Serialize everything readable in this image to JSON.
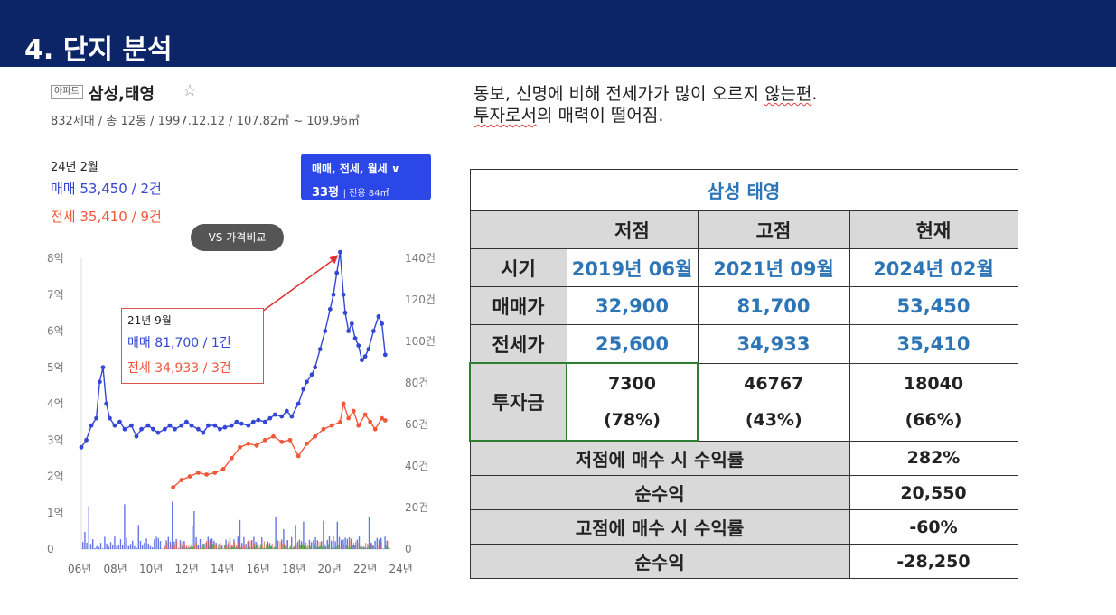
{
  "slide": {
    "title": "4. 단지 분석"
  },
  "apartment": {
    "tag": "아파트",
    "name": "삼성,태영",
    "star": "☆",
    "meta": "832세대 / 총 12동 / 1997.12.12 / 107.82㎡ ~ 109.96㎡"
  },
  "summary": {
    "period": "24년 2월",
    "trade": "매매 53,450 / 2건",
    "jeonse": "전세 35,410 / 9건"
  },
  "filter_button": {
    "line1": "매매, 전세, 월세",
    "chevron": "∨",
    "size": "33평",
    "area": "전용 84㎡"
  },
  "compare_button": {
    "label": "VS 가격비교"
  },
  "callout": {
    "date": "21년 9월",
    "trade": "매매 81,700 / 1건",
    "jeonse": "전세 34,933 / 3건"
  },
  "comment": {
    "line1_a": "동보, 신명에 비해 전세가가 많이 오르지 ",
    "line1_b": "않는편",
    "line1_c": ".",
    "line2_a": "투자로서",
    "line2_b": "의 매력이 떨어짐."
  },
  "colors": {
    "trade": "#3346d4",
    "jeonse": "#f0583a",
    "volume_jeonse": "#e86050",
    "volume_wolse": "#40b040",
    "header_bar": "#0b2566"
  },
  "chart_data": {
    "type": "line",
    "x_tick_labels": [
      "06년",
      "08년",
      "10년",
      "12년",
      "14년",
      "16년",
      "18년",
      "20년",
      "22년",
      "24년"
    ],
    "y_left_tick_labels": [
      "0",
      "1억",
      "2억",
      "3억",
      "4억",
      "5억",
      "6억",
      "7억",
      "8억"
    ],
    "y_right_tick_labels": [
      "0",
      "20건",
      "40건",
      "60건",
      "80건",
      "100건",
      "120건",
      "140건"
    ],
    "ylim_price_manwon": [
      0,
      80000
    ],
    "ylim_volume": [
      0,
      140
    ],
    "series": [
      {
        "name": "매매",
        "color": "#3346d4",
        "x": [
          2006.0,
          2006.3,
          2006.6,
          2006.9,
          2007.1,
          2007.3,
          2007.5,
          2007.7,
          2008.0,
          2008.3,
          2008.6,
          2009.0,
          2009.3,
          2009.6,
          2010.0,
          2010.3,
          2010.6,
          2011.0,
          2011.3,
          2011.6,
          2012.0,
          2012.3,
          2012.6,
          2013.0,
          2013.3,
          2013.6,
          2014.0,
          2014.3,
          2014.6,
          2015.0,
          2015.3,
          2015.6,
          2016.0,
          2016.3,
          2016.6,
          2017.0,
          2017.3,
          2017.6,
          2018.0,
          2018.3,
          2018.6,
          2019.0,
          2019.3,
          2019.5,
          2019.8,
          2020.0,
          2020.3,
          2020.6,
          2020.9,
          2021.1,
          2021.3,
          2021.5,
          2021.7,
          2021.8,
          2022.0,
          2022.2,
          2022.4,
          2022.6,
          2022.8,
          2023.0,
          2023.2,
          2023.5,
          2023.8,
          2024.0,
          2024.2
        ],
        "values": [
          28000,
          30000,
          34000,
          36000,
          46000,
          50000,
          40000,
          36000,
          34000,
          35000,
          33000,
          34000,
          31000,
          33000,
          34000,
          33000,
          32000,
          33000,
          34000,
          33000,
          34000,
          35000,
          34000,
          33000,
          32000,
          34000,
          34000,
          33000,
          33500,
          34000,
          35000,
          34500,
          34000,
          35000,
          35500,
          35000,
          36000,
          37000,
          36500,
          38000,
          36500,
          40000,
          44000,
          46000,
          48000,
          50000,
          55000,
          60000,
          66000,
          70000,
          76000,
          81700,
          70000,
          65000,
          60000,
          62000,
          58000,
          56000,
          52000,
          53000,
          55000,
          60000,
          64000,
          62000,
          53450
        ]
      },
      {
        "name": "전세",
        "color": "#f0583a",
        "x": [
          2011.5,
          2012.0,
          2012.5,
          2013.0,
          2013.5,
          2014.0,
          2014.5,
          2015.0,
          2015.5,
          2016.0,
          2016.5,
          2017.0,
          2017.5,
          2018.0,
          2018.5,
          2019.0,
          2019.5,
          2020.0,
          2020.5,
          2021.0,
          2021.5,
          2021.7,
          2022.0,
          2022.3,
          2022.6,
          2023.0,
          2023.3,
          2023.6,
          2024.0,
          2024.2
        ],
        "values": [
          17000,
          19000,
          20000,
          21000,
          20500,
          21000,
          22000,
          25000,
          28000,
          29000,
          28500,
          30000,
          31000,
          29500,
          30000,
          25600,
          29000,
          31000,
          33000,
          34000,
          34933,
          40000,
          36000,
          38000,
          34000,
          37000,
          35000,
          33000,
          36000,
          35410
        ]
      }
    ]
  },
  "table": {
    "title": "삼성 태영",
    "headers": [
      "저점",
      "고점",
      "현재"
    ],
    "rows": [
      {
        "label": "시기",
        "values": [
          "2019년 06월",
          "2021년 09월",
          "2024년 02월"
        ]
      },
      {
        "label": "매매가",
        "values": [
          "32,900",
          "81,700",
          "53,450"
        ]
      },
      {
        "label": "전세가",
        "values": [
          "25,600",
          "34,933",
          "35,410"
        ]
      }
    ],
    "invest": {
      "label": "투자금",
      "values": [
        "7300",
        "46767",
        "18040"
      ],
      "ratios": [
        "(78%)",
        "(43%)",
        "(66%)"
      ]
    },
    "summary_rows": [
      {
        "label": "저점에 매수 시 수익률",
        "value": "282%"
      },
      {
        "label": "순수익",
        "value": "20,550"
      },
      {
        "label": "고점에 매수 시 수익률",
        "value": "-60%"
      },
      {
        "label": "순수익",
        "value": "-28,250"
      }
    ]
  }
}
